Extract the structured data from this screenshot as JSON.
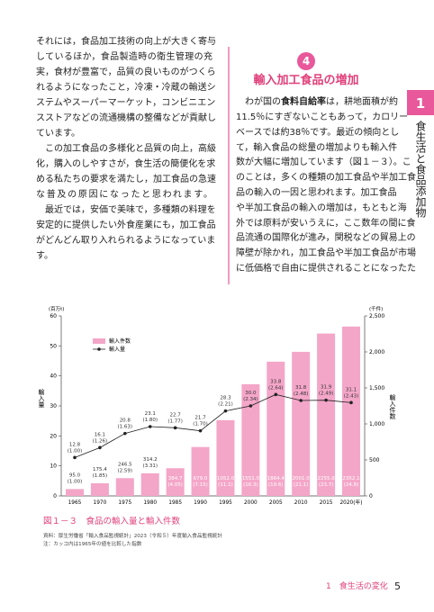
{
  "left_column": {
    "lines": [
      "それには，食品加工技術の向上が大きく寄与",
      "しているほか，食品製造時の衛生管理の充",
      "実，食材が豊富で，品質の良いものがつくら",
      "れるようになったこと，冷凍・冷蔵の輸送シ",
      "ステムやスーパーマーケット，コンビニエン",
      "スストアなどの流通機構の整備などが貢献し",
      "ています。",
      "　この加工食品の多様化と品質の向上，高級",
      "化，購入のしやすさが，食生活の簡便化を求",
      "める私たちの要求を満たし，加工食品の急速",
      "な普及の原因になったと思われます。",
      "　最近では，安価で美味で，多種類の料理を",
      "安定的に提供したい外食産業にも，加工食品",
      "がどんどん取り入れられるようになっていま",
      "す。"
    ]
  },
  "section": {
    "number": "4",
    "title": "輸入加工食品の増加"
  },
  "right_column": {
    "first_line": {
      "before": "　わが国の",
      "bold": "食料自給率",
      "after": "は，耕地面積が約"
    },
    "lines": [
      "11.5％にすぎないこともあって，カロリー",
      "ベースでは約38％です。最近の傾向とし",
      "て，輸入食品の総量の増加よりも輸入件",
      "数が大幅に増加しています（図１－３）。こ",
      "のことは，多くの種類の加工食品や半加工食",
      "品の輸入の一因と思われます。加工食品",
      "や半加工食品の輸入の増加は，もともと海",
      "外では原料が安いうえに，ここ数年の間に食",
      "品流通の国際化が進み，関税などの貿易上の",
      "障壁が除かれ，加工食品や半加工食品が市場",
      "に低価格で自由に提供されることになったた"
    ]
  },
  "side_tab": {
    "number": "1",
    "title": "食生活と食品添加物"
  },
  "chart_data": {
    "type": "bar_line",
    "y_unit": "(百万t)",
    "y2_unit": "(千件)",
    "ylabel": "輸入量",
    "y2label": "輸入件数",
    "legend": "upper left",
    "categories": [
      "1965",
      "1970",
      "1975",
      "1980",
      "1985",
      "1990",
      "1995",
      "2000",
      "2005",
      "2010",
      "2015",
      "2020(年)"
    ],
    "series": [
      {
        "name": "輸入件数",
        "type": "bar",
        "axis": "y2",
        "color": "#f4a6c8",
        "values": [
          95,
          175.4,
          246.5,
          314.2,
          384.7,
          679,
          1052,
          1551,
          1864.4,
          2001,
          2255,
          2352.1
        ],
        "value_labels": [
          "95.0",
          "175.4",
          "246.5",
          "314.2",
          "384.7",
          "679.0",
          "1052.0",
          "1551.0",
          "1864.4",
          "2001.0",
          "2255.0",
          "2352.1"
        ],
        "index_labels": [
          "(1.00)",
          "(1.85)",
          "(2.59)",
          "(3.31)",
          "(4.05)",
          "(7.15)",
          "(11.1)",
          "(16.3)",
          "(19.6)",
          "(21.1)",
          "(23.7)",
          "(24.8)"
        ]
      },
      {
        "name": "輸入量",
        "type": "line",
        "color": "#222222",
        "values": [
          12.8,
          16.1,
          20.8,
          23.1,
          22.7,
          21.7,
          28.3,
          30,
          33.8,
          31.8,
          31.9,
          31.1
        ],
        "value_labels": [
          "12.8",
          "16.1",
          "20.8",
          "23.1",
          "22.7",
          "21.7",
          "28.3",
          "30.0",
          "33.8",
          "31.8",
          "31.9",
          "31.1"
        ],
        "index_labels": [
          "(1.00)",
          "(1.26)",
          "(1.63)",
          "(1.80)",
          "(1.77)",
          "(1.70)",
          "(2.21)",
          "(2.34)",
          "(2.64)",
          "(2.48)",
          "(2.49)",
          "(2.43)"
        ]
      }
    ],
    "ylim": [
      0,
      60
    ],
    "yticks": [
      0,
      10,
      20,
      30,
      40,
      50,
      60
    ],
    "y2lim": [
      0,
      2500
    ],
    "y2ticks": [
      0,
      500,
      {
        "value": 1000,
        "label": "1,000"
      },
      {
        "value": 1500,
        "label": "1,500"
      },
      {
        "value": 2000,
        "label": "2,000"
      },
      {
        "value": 2500,
        "label": "2,500"
      }
    ]
  },
  "figure": {
    "caption": "図１－３　食品の輸入量と輸入件数",
    "notes": [
      "資料：厚生労働省「輸入食品監視統計」2023（令和５）年度輸入食品監視統計",
      "注：カッコ内は1965年の値を比較した指数"
    ]
  },
  "footer": {
    "section": "1　食生活の変化",
    "page": "5"
  }
}
